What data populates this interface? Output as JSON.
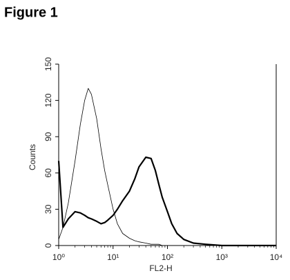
{
  "title": "Figure 1",
  "chart_data": {
    "type": "line",
    "xlabel": "FL2-H",
    "ylabel": "Counts",
    "xscale": "log",
    "x": [
      1,
      1.2,
      1.5,
      2,
      2.5,
      3,
      3.5,
      4,
      5,
      6,
      7,
      8,
      10,
      12,
      15,
      20,
      25,
      30,
      40,
      50,
      60,
      70,
      80,
      100,
      120,
      150,
      200,
      300,
      500,
      1000,
      10000
    ],
    "series": [
      {
        "color": "#000000",
        "line_width": 0.8,
        "values": [
          5,
          15,
          35,
          70,
          100,
          120,
          130,
          125,
          105,
          80,
          62,
          50,
          30,
          18,
          10,
          6,
          4,
          3,
          2,
          1,
          1,
          1,
          0,
          0,
          0,
          0,
          0,
          0,
          0,
          0,
          0
        ]
      },
      {
        "color": "#000000",
        "line_width": 2.2,
        "values": [
          70,
          15,
          22,
          28,
          27,
          25,
          23,
          22,
          20,
          18,
          19,
          21,
          25,
          30,
          37,
          45,
          55,
          65,
          73,
          72,
          62,
          50,
          40,
          28,
          18,
          10,
          5,
          2,
          1,
          0,
          0
        ]
      }
    ],
    "xlim": [
      1,
      10000
    ],
    "xticks": [
      {
        "value": 1,
        "label": "10⁰"
      },
      {
        "value": 10,
        "label": "10¹"
      },
      {
        "value": 100,
        "label": "10²"
      },
      {
        "value": 1000,
        "label": "10³"
      },
      {
        "value": 10000,
        "label": "10⁴"
      }
    ],
    "ylim": [
      0,
      150
    ],
    "yticks": [
      0,
      30,
      60,
      90,
      120,
      150
    ]
  }
}
